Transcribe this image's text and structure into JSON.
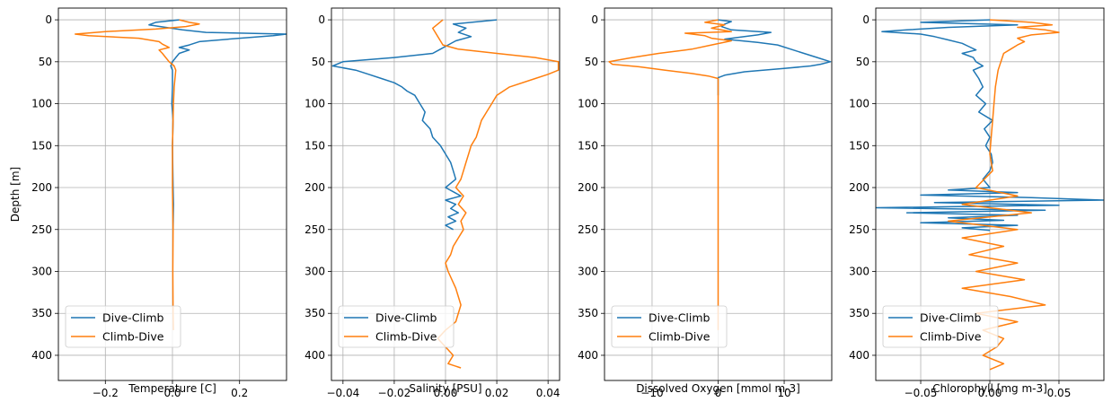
{
  "colors": {
    "dive_climb": "#1f77b4",
    "climb_dive": "#ff7f0e",
    "grid": "#b0b0b0"
  },
  "chart_data": [
    {
      "type": "line",
      "xlabel": "Temperature [C]",
      "ylabel": "Depth [m]",
      "xlim": [
        -0.34,
        0.34
      ],
      "ylim": [
        430,
        -14
      ],
      "xticks": [
        -0.2,
        0.0,
        0.2
      ],
      "xtick_labels": [
        "−0.2",
        "0.0",
        "0.2"
      ],
      "yticks": [
        0,
        50,
        100,
        150,
        200,
        250,
        300,
        350,
        400
      ],
      "ytick_labels": [
        "0",
        "50",
        "100",
        "150",
        "200",
        "250",
        "300",
        "350",
        "400"
      ],
      "grid": true,
      "legend_position": "lower left",
      "series": [
        {
          "name": "Dive-Climb",
          "depth": [
            0,
            3,
            6,
            9,
            12,
            15,
            17,
            19,
            22,
            26,
            30,
            33,
            36,
            40,
            45,
            50,
            55,
            60,
            80,
            100,
            120,
            150,
            180,
            200,
            220,
            250
          ],
          "values": [
            0.02,
            -0.05,
            -0.07,
            -0.02,
            0.03,
            0.1,
            0.34,
            0.3,
            0.2,
            0.08,
            0.05,
            0.02,
            0.05,
            0.02,
            0.01,
            0.0,
            -0.005,
            0.0,
            0.0,
            -0.002,
            0.002,
            0.0,
            0.001,
            0.002,
            0.003,
            0.002
          ]
        },
        {
          "name": "Climb-Dive",
          "depth": [
            0,
            3,
            5,
            8,
            11,
            14,
            17,
            19,
            22,
            26,
            29,
            33,
            36,
            40,
            45,
            50,
            55,
            60,
            80,
            100,
            150,
            200,
            250,
            300,
            350,
            370
          ],
          "values": [
            0.02,
            0.05,
            0.08,
            0.04,
            -0.05,
            -0.2,
            -0.29,
            -0.25,
            -0.1,
            -0.04,
            -0.03,
            -0.01,
            -0.04,
            -0.03,
            -0.02,
            -0.01,
            0.005,
            0.01,
            0.005,
            0.003,
            0.0,
            0.0,
            0.002,
            0.001,
            0.002,
            0.003
          ]
        }
      ]
    },
    {
      "type": "line",
      "xlabel": "Salinity [PSU]",
      "xlim": [
        -0.0445,
        0.0445
      ],
      "ylim": [
        430,
        -14
      ],
      "xticks": [
        -0.04,
        -0.02,
        0.0,
        0.02,
        0.04
      ],
      "xtick_labels": [
        "−0.04",
        "−0.02",
        "0.00",
        "0.02",
        "0.04"
      ],
      "yticks": [
        0,
        50,
        100,
        150,
        200,
        250,
        300,
        350,
        400
      ],
      "ytick_labels": [
        "0",
        "50",
        "100",
        "150",
        "200",
        "250",
        "300",
        "350",
        "400"
      ],
      "grid": true,
      "legend_position": "lower left",
      "series": [
        {
          "name": "Dive-Climb",
          "depth": [
            0,
            5,
            10,
            15,
            20,
            25,
            30,
            35,
            40,
            45,
            50,
            55,
            60,
            65,
            70,
            75,
            80,
            85,
            90,
            100,
            110,
            120,
            130,
            140,
            150,
            160,
            170,
            180,
            190,
            200,
            205,
            210,
            215,
            220,
            225,
            230,
            235,
            240,
            245,
            250
          ],
          "values": [
            0.02,
            0.003,
            0.008,
            0.005,
            0.01,
            0.004,
            0.001,
            -0.002,
            -0.005,
            -0.02,
            -0.04,
            -0.044,
            -0.035,
            -0.03,
            -0.025,
            -0.02,
            -0.017,
            -0.015,
            -0.012,
            -0.01,
            -0.008,
            -0.009,
            -0.006,
            -0.005,
            -0.002,
            0.0,
            0.002,
            0.003,
            0.004,
            0.0,
            0.003,
            0.006,
            0.0,
            0.004,
            0.002,
            0.005,
            0.001,
            0.004,
            0.0,
            0.003
          ]
        },
        {
          "name": "Climb-Dive",
          "depth": [
            0,
            5,
            10,
            15,
            20,
            25,
            30,
            35,
            40,
            45,
            50,
            55,
            60,
            65,
            70,
            80,
            90,
            100,
            110,
            120,
            130,
            140,
            150,
            160,
            170,
            180,
            190,
            200,
            210,
            220,
            230,
            240,
            250,
            260,
            270,
            280,
            290,
            300,
            320,
            340,
            360,
            370,
            380,
            390,
            400,
            410,
            415
          ],
          "values": [
            -0.001,
            -0.003,
            -0.005,
            -0.004,
            -0.003,
            -0.002,
            -0.001,
            0.005,
            0.02,
            0.035,
            0.044,
            0.044,
            0.044,
            0.04,
            0.035,
            0.025,
            0.02,
            0.018,
            0.016,
            0.014,
            0.013,
            0.012,
            0.01,
            0.009,
            0.008,
            0.007,
            0.006,
            0.004,
            0.007,
            0.005,
            0.008,
            0.006,
            0.007,
            0.005,
            0.003,
            0.002,
            0.0,
            0.001,
            0.004,
            0.006,
            0.004,
            0.0,
            -0.003,
            0.0,
            0.003,
            0.001,
            0.006
          ]
        }
      ]
    },
    {
      "type": "line",
      "xlabel": "Dissolved Oxygen [mmol m-3]",
      "xlim": [
        -17.2,
        17.2
      ],
      "ylim": [
        430,
        -14
      ],
      "xticks": [
        -10,
        0,
        10
      ],
      "xtick_labels": [
        "−10",
        "0",
        "10"
      ],
      "yticks": [
        0,
        50,
        100,
        150,
        200,
        250,
        300,
        350,
        400
      ],
      "ytick_labels": [
        "0",
        "50",
        "100",
        "150",
        "200",
        "250",
        "300",
        "350",
        "400"
      ],
      "grid": true,
      "legend_position": "lower left",
      "series": [
        {
          "name": "Dive-Climb",
          "depth": [
            0,
            2,
            5,
            8,
            12,
            15,
            18,
            20,
            23,
            27,
            30,
            35,
            40,
            45,
            50,
            53,
            55,
            58,
            62,
            66,
            69,
            72,
            75,
            90
          ],
          "values": [
            0.0,
            2.0,
            1.0,
            0.5,
            2.0,
            8.0,
            6.0,
            4.0,
            1.0,
            6.0,
            9.0,
            11.0,
            13.0,
            15.0,
            17.0,
            15.5,
            14.0,
            10.0,
            4.0,
            1.0,
            0.0,
            0.0,
            0.0,
            0.0
          ]
        },
        {
          "name": "Climb-Dive",
          "depth": [
            0,
            3,
            6,
            10,
            14,
            16,
            19,
            22,
            25,
            30,
            35,
            40,
            45,
            50,
            53,
            56,
            60,
            64,
            67,
            70,
            75,
            100,
            150,
            200,
            250,
            300,
            350,
            370
          ],
          "values": [
            0.0,
            -2.0,
            1.0,
            -1.0,
            2.0,
            -5.0,
            -2.0,
            -1.0,
            2.0,
            -1.0,
            -4.0,
            -9.0,
            -13.0,
            -16.5,
            -16.0,
            -12.0,
            -8.0,
            -4.0,
            -1.5,
            0.0,
            0.0,
            0.0,
            0.0,
            0.0,
            0.0,
            0.0,
            0.0,
            0.0
          ]
        }
      ]
    },
    {
      "type": "line",
      "xlabel": "Chlorophyll [mg m-3]",
      "xlim": [
        -0.0825,
        0.0825
      ],
      "ylim": [
        430,
        -14
      ],
      "xticks": [
        -0.05,
        0.0,
        0.05
      ],
      "xtick_labels": [
        "−0.05",
        "0.00",
        "0.05"
      ],
      "yticks": [
        0,
        50,
        100,
        150,
        200,
        250,
        300,
        350,
        400
      ],
      "ytick_labels": [
        "0",
        "50",
        "100",
        "150",
        "200",
        "250",
        "300",
        "350",
        "400"
      ],
      "grid": true,
      "legend_position": "lower left",
      "series": [
        {
          "name": "Dive-Climb",
          "depth": [
            0,
            3,
            6,
            9,
            12,
            14,
            17,
            20,
            24,
            28,
            32,
            36,
            40,
            45,
            50,
            55,
            60,
            70,
            80,
            90,
            100,
            110,
            120,
            130,
            140,
            150,
            160,
            170,
            180,
            190,
            200,
            203,
            206,
            209,
            212,
            215,
            218,
            221,
            224,
            227,
            230,
            233,
            236,
            239,
            242,
            245,
            248,
            251
          ],
          "values": [
            0.0,
            -0.05,
            0.02,
            -0.03,
            -0.06,
            -0.078,
            -0.05,
            -0.04,
            -0.03,
            -0.02,
            -0.015,
            -0.01,
            -0.02,
            -0.012,
            -0.01,
            -0.005,
            -0.012,
            -0.008,
            -0.005,
            -0.01,
            -0.003,
            -0.008,
            0.002,
            -0.004,
            0.0,
            -0.003,
            0.001,
            0.002,
            0.0,
            -0.005,
            0.0,
            -0.03,
            0.02,
            -0.05,
            0.03,
            0.082,
            -0.04,
            0.05,
            -0.082,
            0.04,
            -0.06,
            0.02,
            -0.03,
            0.01,
            -0.05,
            0.02,
            -0.02,
            0.0
          ]
        },
        {
          "name": "Climb-Dive",
          "depth": [
            0,
            3,
            6,
            9,
            12,
            15,
            18,
            22,
            26,
            30,
            35,
            40,
            50,
            60,
            80,
            100,
            120,
            140,
            160,
            180,
            200,
            210,
            220,
            230,
            240,
            250,
            260,
            270,
            280,
            290,
            300,
            310,
            320,
            330,
            340,
            350,
            360,
            370,
            380,
            390,
            400,
            410,
            417
          ],
          "values": [
            0.0,
            0.03,
            0.045,
            0.02,
            0.04,
            0.05,
            0.03,
            0.02,
            0.025,
            0.02,
            0.015,
            0.01,
            0.008,
            0.006,
            0.004,
            0.003,
            0.002,
            0.001,
            0.0,
            0.002,
            -0.01,
            0.02,
            -0.02,
            0.03,
            -0.03,
            0.02,
            -0.02,
            0.01,
            -0.015,
            0.02,
            -0.01,
            0.025,
            -0.02,
            0.015,
            0.04,
            -0.01,
            0.02,
            -0.005,
            0.01,
            0.005,
            -0.005,
            0.01,
            0.0
          ]
        }
      ]
    }
  ]
}
